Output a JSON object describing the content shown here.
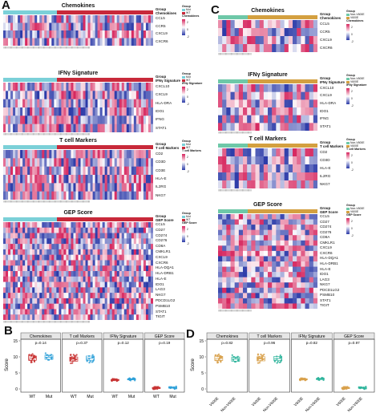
{
  "colors": {
    "wt": "#c83232",
    "mut": "#2a9fd8",
    "v600e": "#d8a04a",
    "non_v600e": "#2ab39a",
    "bar_left": "#7bd0d8",
    "bar_right": "#c8293a",
    "bar_left_c": "#6ec8a8",
    "bar_right_c": "#d4a040",
    "high": "#d6265e",
    "low": "#2b3aa8"
  },
  "panels": {
    "A": "A",
    "B": "B",
    "C": "C",
    "D": "D"
  },
  "heatmapsA": [
    {
      "title": "Chemokines",
      "rows": [
        "CCL5",
        "CCR5",
        "CXCL9",
        "CXCR6"
      ]
    },
    {
      "title": "IFNγ Signature",
      "rows": [
        "CXCL10",
        "CXCL9",
        "HLA-DRA",
        "IDO1",
        "IFNG",
        "STAT1"
      ]
    },
    {
      "title": "T cell Markers",
      "rows": [
        "CD2",
        "CD3D",
        "CD3E",
        "HLA-E",
        "IL2RG",
        "NKG7"
      ]
    },
    {
      "title": "GEP Score",
      "rows": [
        "CCL5",
        "CD27",
        "CD274",
        "CD276",
        "CD8A",
        "CMKLR1",
        "CXCL9",
        "CXCR6",
        "HLA-DQA1",
        "HLA-DRB1",
        "HLA-E",
        "IDO1",
        "LAG3",
        "NKG7",
        "PDCD1LG2",
        "PSMB10",
        "STAT1",
        "TIGIT"
      ]
    }
  ],
  "heatmapsC": [
    {
      "title": "Chemokines",
      "rows": [
        "CCL5",
        "CCR5",
        "CXCL9",
        "CXCR6"
      ]
    },
    {
      "title": "IFNγ Signature",
      "rows": [
        "CXCL10",
        "CXCL9",
        "HLA-DRA",
        "IDO1",
        "IFNG",
        "STAT1"
      ]
    },
    {
      "title": "T cell Markers",
      "rows": [
        "CD2",
        "CD3D",
        "HLA-E",
        "IL2RG",
        "NKG7"
      ]
    },
    {
      "title": "GEP Score",
      "rows": [
        "CCL5",
        "CD27",
        "CD274",
        "CD276",
        "CD8A",
        "CMKLR1",
        "CXCL9",
        "CXCR6",
        "HLA-DQA1",
        "HLA-DRB1",
        "HLA-E",
        "IDO1",
        "LAG3",
        "NKG7",
        "PDCD1LG2",
        "PSMB10",
        "STAT1",
        "TIGIT"
      ]
    }
  ],
  "heatmap_labels": {
    "group": "Group",
    "A_legend_items": [
      "Mut",
      "WT"
    ],
    "C_legend_items": [
      "Non-V600E",
      "V600E"
    ],
    "ramp_high": "2",
    "ramp_mid": "0",
    "ramp_low": "-2"
  },
  "chart_data": [
    {
      "type": "scatter",
      "panel": "B",
      "ylabel": "Score",
      "ylim": [
        0,
        15
      ],
      "y_ticks": [
        "0",
        "5",
        "10",
        "15"
      ],
      "facets": [
        {
          "title": "Chemokines",
          "pvalue": "p=0.14",
          "categories": [
            "WT",
            "Mut"
          ],
          "medians": [
            9.6,
            9.9
          ]
        },
        {
          "title": "T cell Markers",
          "pvalue": "p=0.37",
          "categories": [
            "WT",
            "Mut"
          ],
          "medians": [
            9.3,
            9.6
          ]
        },
        {
          "title": "IFNγ Signature",
          "pvalue": "p=0.12",
          "categories": [
            "WT",
            "Mut"
          ],
          "medians": [
            2.8,
            3.0
          ]
        },
        {
          "title": "GEP Score",
          "pvalue": "p=0.19",
          "categories": [
            "WT",
            "Mut"
          ],
          "medians": [
            0.3,
            0.4
          ]
        }
      ]
    },
    {
      "type": "scatter",
      "panel": "D",
      "ylabel": "Score",
      "ylim": [
        0,
        15
      ],
      "y_ticks": [
        "0",
        "5",
        "10",
        "15"
      ],
      "facets": [
        {
          "title": "Chemokines",
          "pvalue": "p=0.82",
          "categories": [
            "V600E",
            "Non-V600E"
          ],
          "medians": [
            9.5,
            9.3
          ]
        },
        {
          "title": "T cell Markers",
          "pvalue": "p=0.96",
          "categories": [
            "V600E",
            "Non-V600E"
          ],
          "medians": [
            9.4,
            9.5
          ]
        },
        {
          "title": "IFNγ Signature",
          "pvalue": "p=0.82",
          "categories": [
            "V600E",
            "Non-V600E"
          ],
          "medians": [
            3.0,
            3.1
          ]
        },
        {
          "title": "GEP Score",
          "pvalue": "p=0.97",
          "categories": [
            "V600E",
            "Non-V600E"
          ],
          "medians": [
            0.3,
            0.35
          ]
        }
      ]
    }
  ]
}
